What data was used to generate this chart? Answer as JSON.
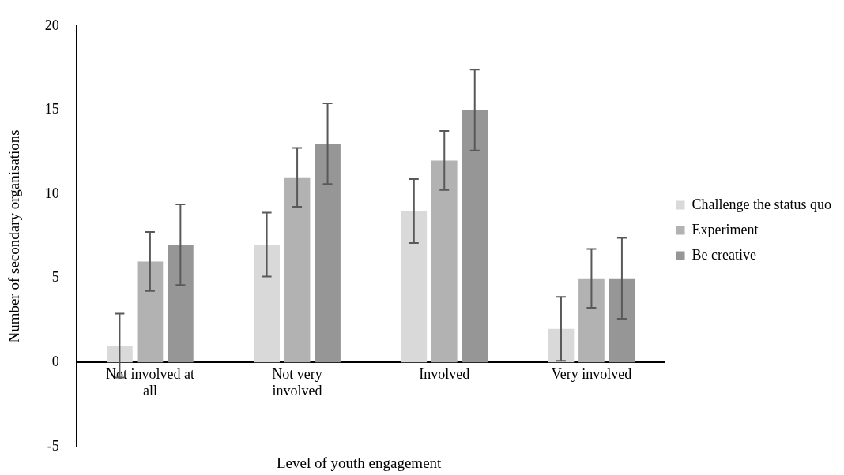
{
  "chart_data": {
    "type": "bar",
    "xlabel": "Level of youth engagement",
    "ylabel": "Number of secondary organisations",
    "categories": [
      "Not involved at all",
      "Not very involved",
      "Involved",
      "Very involved"
    ],
    "series": [
      {
        "name": "Challenge the status quo",
        "color": "#d9d9d9",
        "values": [
          1,
          7,
          9,
          2
        ],
        "errors": [
          1.9,
          1.9,
          1.9,
          1.9
        ]
      },
      {
        "name": "Experiment",
        "color": "#b2b2b2",
        "values": [
          6,
          11,
          12,
          5
        ],
        "errors": [
          1.75,
          1.75,
          1.75,
          1.75
        ]
      },
      {
        "name": "Be creative",
        "color": "#969696",
        "values": [
          7,
          13,
          15,
          5
        ],
        "errors": [
          2.4,
          2.4,
          2.4,
          2.4
        ]
      }
    ],
    "ylim": [
      -5,
      20
    ],
    "yticks": [
      -5,
      0,
      5,
      10,
      15,
      20
    ],
    "grid": false,
    "legend": "right"
  }
}
